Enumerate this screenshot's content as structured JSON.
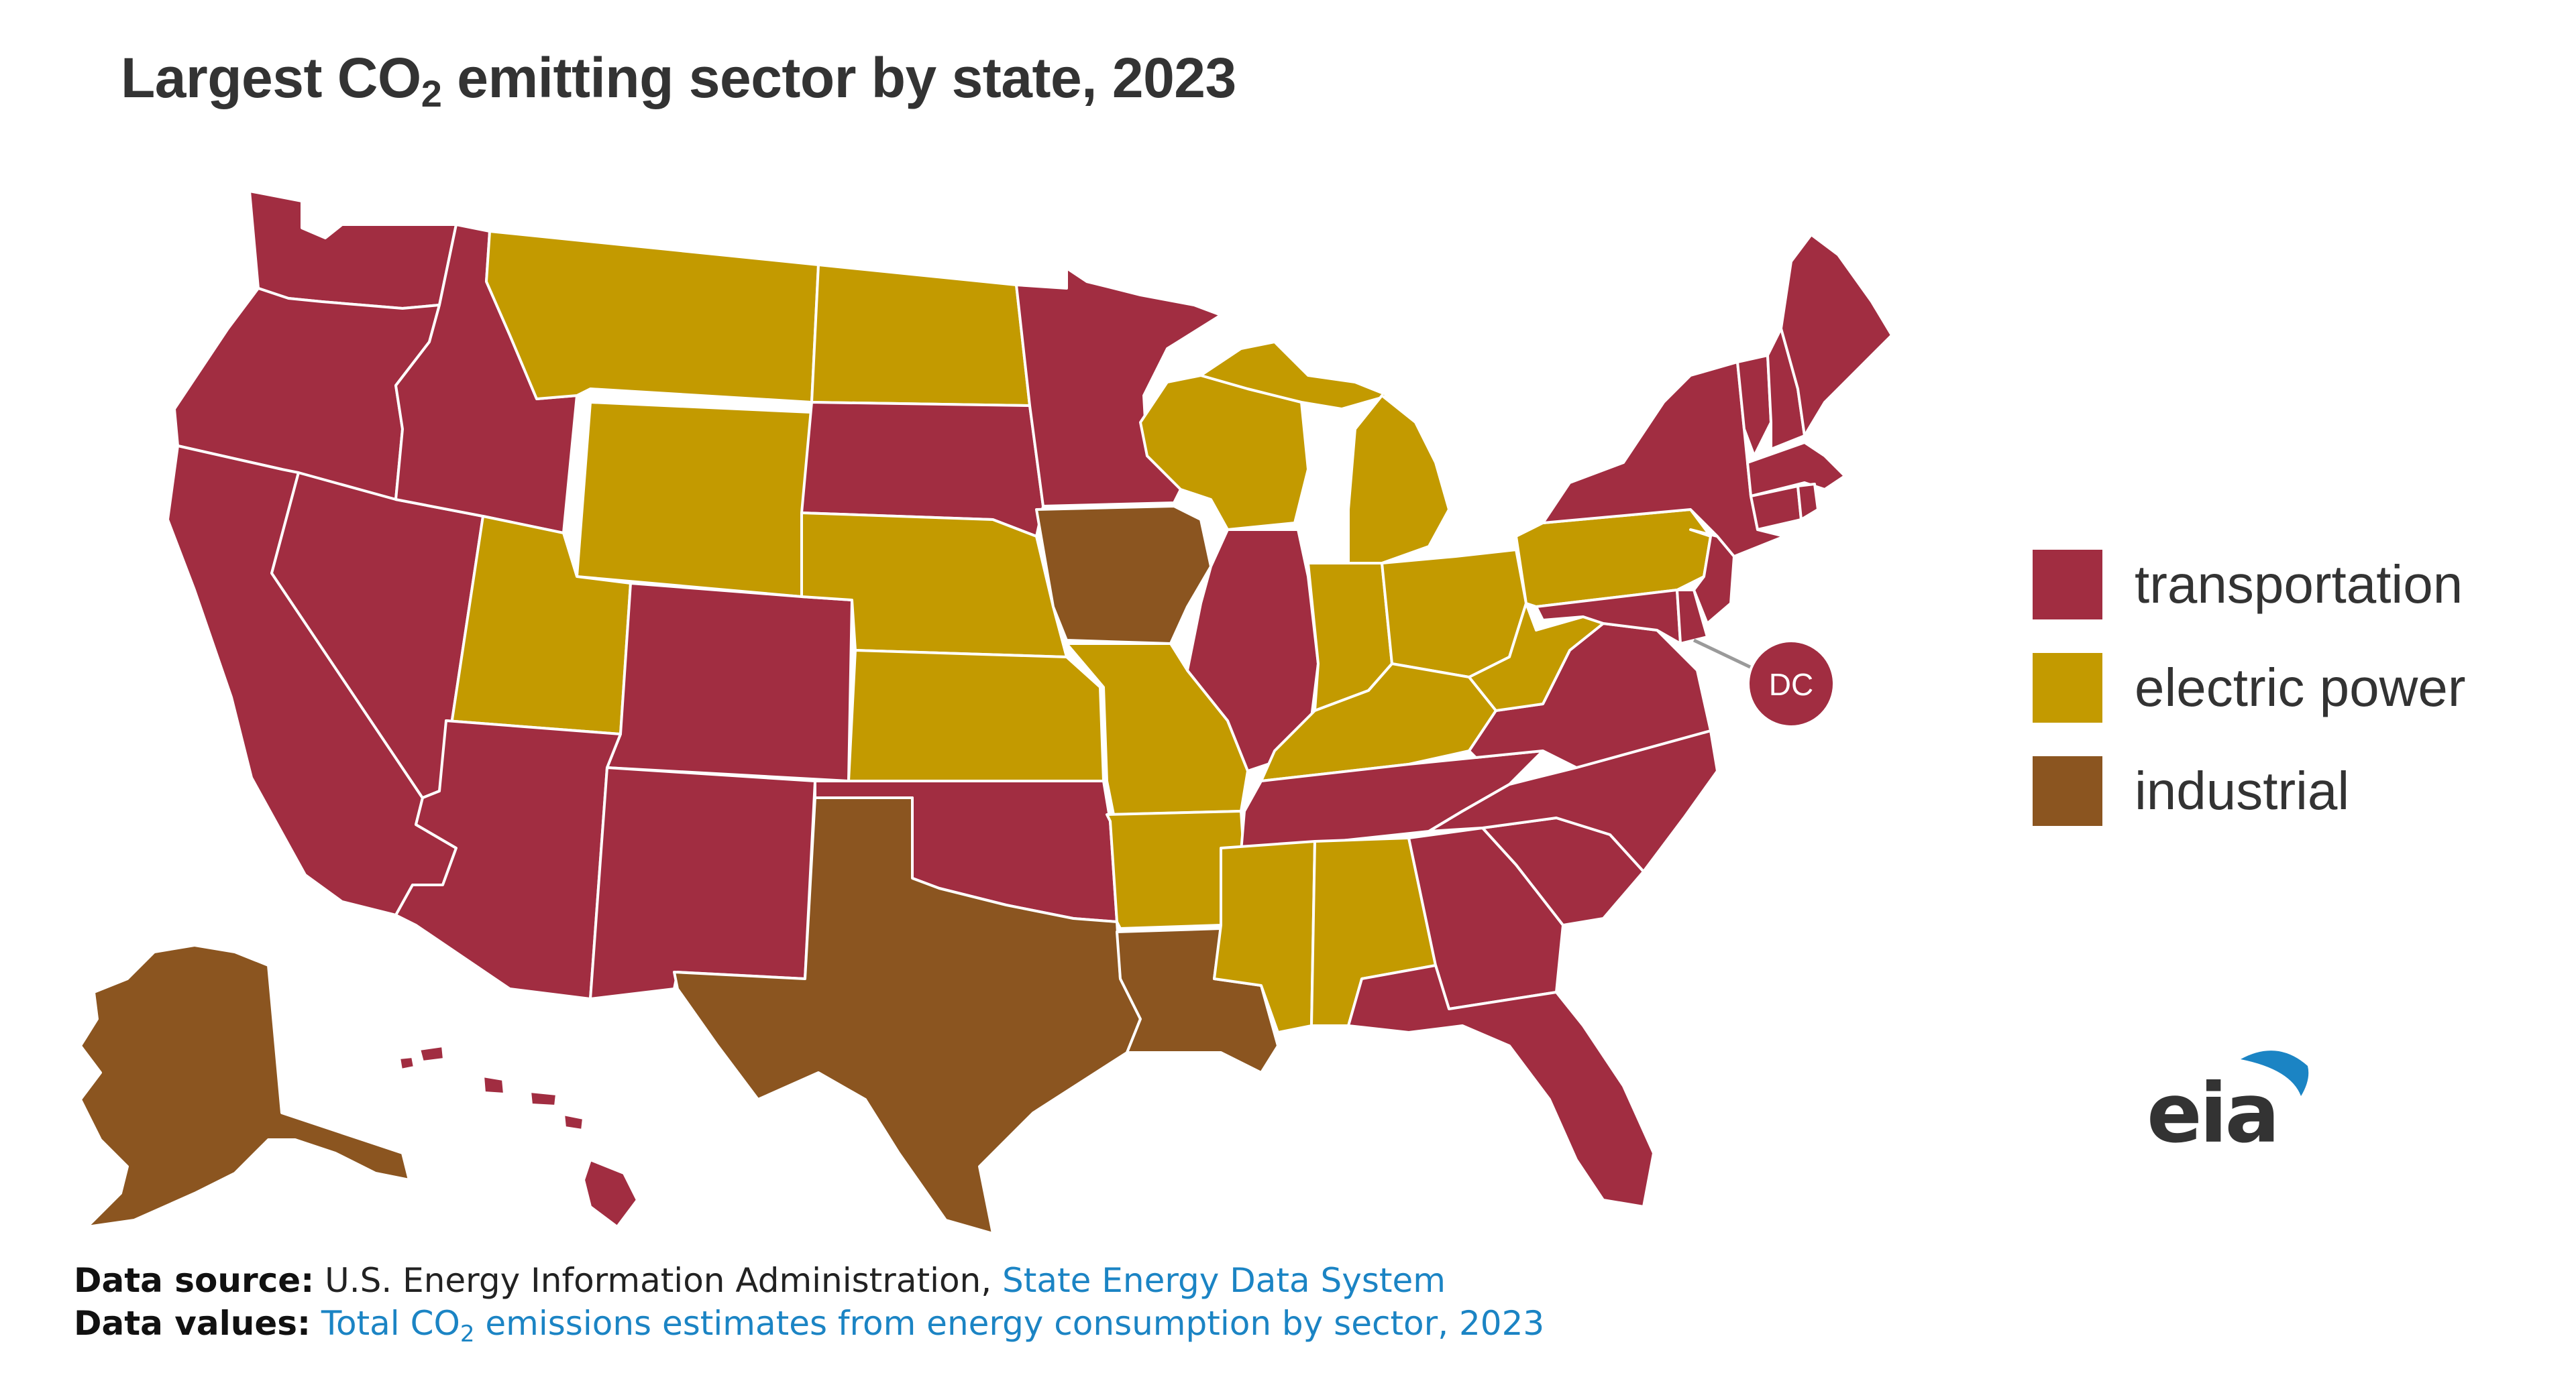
{
  "title": {
    "prefix": "Largest CO",
    "sub": "2",
    "suffix": " emitting sector by state, 2023"
  },
  "colors": {
    "transportation": "#a12d41",
    "electric_power": "#c39a00",
    "industrial": "#8b5520",
    "border": "#ffffff"
  },
  "legend": [
    {
      "key": "transportation",
      "label": "transportation"
    },
    {
      "key": "electric_power",
      "label": "electric power"
    },
    {
      "key": "industrial",
      "label": "industrial"
    }
  ],
  "dc_label": "DC",
  "states": {
    "WA": "transportation",
    "OR": "transportation",
    "CA": "transportation",
    "ID": "transportation",
    "NV": "transportation",
    "AZ": "transportation",
    "CO": "transportation",
    "NM": "transportation",
    "SD": "transportation",
    "MN": "transportation",
    "OK": "transportation",
    "IL": "transportation",
    "TN": "transportation",
    "GA": "transportation",
    "FL": "transportation",
    "SC": "transportation",
    "NC": "transportation",
    "VA": "transportation",
    "MD": "transportation",
    "DE": "transportation",
    "NJ": "transportation",
    "NY": "transportation",
    "CT": "transportation",
    "RI": "transportation",
    "MA": "transportation",
    "VT": "transportation",
    "NH": "transportation",
    "ME": "transportation",
    "HI": "transportation",
    "DC": "transportation",
    "MT": "electric_power",
    "WY": "electric_power",
    "ND": "electric_power",
    "UT": "electric_power",
    "NE": "electric_power",
    "KS": "electric_power",
    "MO": "electric_power",
    "AR": "electric_power",
    "MS": "electric_power",
    "AL": "electric_power",
    "WI": "electric_power",
    "MI": "electric_power",
    "IN": "electric_power",
    "OH": "electric_power",
    "KY": "electric_power",
    "WV": "electric_power",
    "PA": "electric_power",
    "IA": "industrial",
    "TX": "industrial",
    "LA": "industrial",
    "AK": "industrial"
  },
  "footer": {
    "source_label": "Data source:",
    "source_text": " U.S. Energy Information Administration, ",
    "source_link": "State Energy Data System",
    "values_label": "Data values:",
    "values_link_prefix": " Total CO",
    "values_link_sub": "2",
    "values_link_suffix": " emissions estimates from energy consumption by sector, 2023"
  },
  "logo": {
    "text": "eia"
  }
}
